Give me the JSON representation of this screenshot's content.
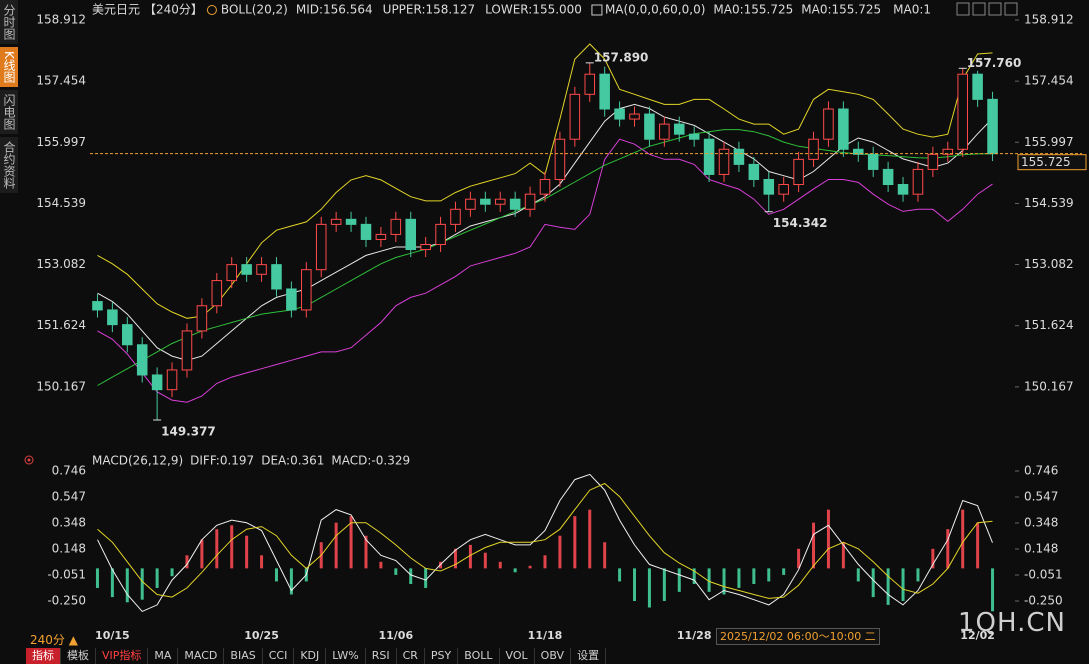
{
  "sidebar": [
    "分时图",
    "K线图",
    "闪电图",
    "合约资料"
  ],
  "chart_data": [
    {
      "type": "candlestick",
      "title": "美元日元",
      "period": "【240分】",
      "indicators": [
        "BOLL(20,2)",
        "MA(0,0,0,60,0,0)"
      ],
      "categories": [
        null,
        "10/15",
        null,
        null,
        null,
        null,
        null,
        null,
        null,
        null,
        null,
        "10/25",
        null,
        null,
        null,
        null,
        null,
        null,
        null,
        null,
        "11/06",
        null,
        null,
        null,
        null,
        null,
        null,
        null,
        null,
        null,
        "11/18",
        null,
        null,
        null,
        null,
        null,
        null,
        null,
        null,
        null,
        "11/28",
        null,
        null,
        null,
        null,
        null,
        null,
        null,
        null,
        null,
        null,
        null,
        null,
        null,
        null,
        null,
        null,
        null,
        null,
        "12/02",
        null
      ],
      "open": [
        152.2,
        152.0,
        151.65,
        151.17,
        150.45,
        150.1,
        150.57,
        151.5,
        152.1,
        152.7,
        153.08,
        152.85,
        153.08,
        152.5,
        152.0,
        152.96,
        154.04,
        154.16,
        154.04,
        153.68,
        153.8,
        154.16,
        153.44,
        153.56,
        154.04,
        154.4,
        154.64,
        154.52,
        154.64,
        154.4,
        154.76,
        155.11,
        156.07,
        157.14,
        157.62,
        156.79,
        156.55,
        156.67,
        156.07,
        156.43,
        156.19,
        156.07,
        155.23,
        155.83,
        155.47,
        155.11,
        154.76,
        154.99,
        155.59,
        156.07,
        156.79,
        155.83,
        155.71,
        155.35,
        154.99,
        154.76,
        155.35,
        155.71,
        155.83,
        157.62,
        157.02
      ],
      "high": [
        152.38,
        152.18,
        151.83,
        151.35,
        150.63,
        150.75,
        151.68,
        152.28,
        152.88,
        153.26,
        153.26,
        153.26,
        153.26,
        152.68,
        153.14,
        154.22,
        154.34,
        154.34,
        154.22,
        153.98,
        154.34,
        154.34,
        153.74,
        154.22,
        154.58,
        154.82,
        154.82,
        154.82,
        154.82,
        154.94,
        155.29,
        156.25,
        157.32,
        157.89,
        157.8,
        156.97,
        156.85,
        156.85,
        156.61,
        156.61,
        156.37,
        156.25,
        156.01,
        156.01,
        155.65,
        155.29,
        155.17,
        155.77,
        156.25,
        156.97,
        156.97,
        156.01,
        155.89,
        155.53,
        155.17,
        155.53,
        155.89,
        156.01,
        157.76,
        157.7,
        157.2
      ],
      "low": [
        151.82,
        151.47,
        150.99,
        150.27,
        149.377,
        149.92,
        150.39,
        151.32,
        151.92,
        152.52,
        152.67,
        152.67,
        152.32,
        151.82,
        151.82,
        152.78,
        153.86,
        153.86,
        153.5,
        153.5,
        153.62,
        153.26,
        153.26,
        153.38,
        153.86,
        154.22,
        154.34,
        154.34,
        154.22,
        154.22,
        154.58,
        154.93,
        155.89,
        156.96,
        156.61,
        156.37,
        156.37,
        155.89,
        155.89,
        156.01,
        155.89,
        155.05,
        155.05,
        155.29,
        154.93,
        154.342,
        154.58,
        154.81,
        155.41,
        155.89,
        155.65,
        155.53,
        155.17,
        154.81,
        154.58,
        154.58,
        155.17,
        155.53,
        155.65,
        156.84,
        155.55
      ],
      "close": [
        152.0,
        151.65,
        151.17,
        150.45,
        150.1,
        150.57,
        151.5,
        152.1,
        152.7,
        153.08,
        152.85,
        153.08,
        152.5,
        152.0,
        152.96,
        154.04,
        154.16,
        154.04,
        153.68,
        153.8,
        154.16,
        153.44,
        153.56,
        154.04,
        154.4,
        154.64,
        154.52,
        154.64,
        154.4,
        154.76,
        155.11,
        156.07,
        157.14,
        157.62,
        156.79,
        156.55,
        156.67,
        156.07,
        156.43,
        156.19,
        156.07,
        155.23,
        155.83,
        155.47,
        155.11,
        154.76,
        154.99,
        155.59,
        156.07,
        156.79,
        155.83,
        155.71,
        155.35,
        154.99,
        154.76,
        155.35,
        155.71,
        155.83,
        157.62,
        157.02,
        155.725
      ],
      "up_color": "#ff4a4a",
      "down_color": "#45c9a0",
      "series": [
        {
          "name": "MID:156.564",
          "color": "#e8e8e8",
          "values": [
            152.4,
            152.2,
            151.9,
            151.5,
            151.1,
            150.9,
            150.8,
            150.9,
            151.2,
            151.5,
            151.8,
            152.1,
            152.3,
            152.4,
            152.5,
            152.7,
            152.9,
            153.1,
            153.3,
            153.4,
            153.5,
            153.5,
            153.5,
            153.6,
            153.8,
            154.0,
            154.1,
            154.2,
            154.3,
            154.5,
            154.7,
            155.0,
            155.5,
            156.0,
            156.5,
            156.8,
            156.9,
            156.8,
            156.6,
            156.5,
            156.4,
            156.2,
            156.0,
            155.8,
            155.6,
            155.3,
            155.2,
            155.1,
            155.3,
            155.6,
            155.9,
            156.1,
            156.0,
            155.8,
            155.6,
            155.5,
            155.4,
            155.5,
            155.8,
            156.2,
            156.564
          ]
        },
        {
          "name": "UPPER:158.127",
          "color": "#e3d428",
          "values": [
            153.3,
            153.1,
            152.85,
            152.5,
            152.15,
            151.95,
            151.8,
            151.85,
            152.15,
            152.6,
            153.1,
            153.6,
            153.9,
            154.0,
            154.1,
            154.4,
            154.8,
            155.1,
            155.2,
            155.1,
            154.9,
            154.7,
            154.6,
            154.6,
            154.8,
            154.95,
            155.05,
            155.15,
            155.25,
            155.5,
            155.23,
            156.55,
            157.98,
            158.34,
            157.98,
            157.26,
            157.14,
            157.02,
            156.9,
            156.9,
            157.02,
            157.02,
            156.79,
            156.55,
            156.43,
            156.43,
            156.19,
            156.31,
            157.02,
            157.26,
            157.2,
            157.14,
            157.02,
            156.67,
            156.31,
            156.19,
            156.12,
            156.19,
            157.5,
            158.1,
            158.127
          ]
        },
        {
          "name": "LOWER:155.000",
          "color": "#d83fd8",
          "values": [
            151.5,
            151.3,
            150.95,
            150.5,
            150.05,
            149.85,
            149.8,
            149.95,
            150.25,
            150.4,
            150.5,
            150.6,
            150.7,
            150.8,
            150.9,
            151.0,
            151.0,
            151.1,
            151.4,
            151.7,
            152.1,
            152.3,
            152.4,
            152.6,
            152.8,
            153.05,
            153.15,
            153.25,
            153.35,
            153.5,
            154.04,
            153.97,
            153.92,
            154.28,
            155.59,
            156.07,
            155.95,
            155.71,
            155.59,
            155.59,
            155.47,
            155.11,
            154.99,
            154.88,
            154.64,
            154.28,
            154.4,
            154.64,
            154.88,
            155.11,
            155.11,
            155.04,
            154.76,
            154.52,
            154.35,
            154.4,
            154.4,
            154.11,
            154.4,
            154.76,
            155.0
          ]
        },
        {
          "name": "MA0:155.725",
          "color": "#2fbf3a",
          "legend_color": "#e8e8e8",
          "values": [
            150.2,
            150.4,
            150.6,
            150.8,
            151.0,
            151.2,
            151.35,
            151.5,
            151.6,
            151.7,
            151.8,
            151.9,
            151.95,
            152.0,
            152.1,
            152.3,
            152.5,
            152.7,
            152.9,
            153.1,
            153.25,
            153.35,
            153.45,
            153.6,
            153.75,
            153.9,
            154.05,
            154.2,
            154.35,
            154.5,
            154.65,
            154.85,
            155.05,
            155.25,
            155.45,
            155.6,
            155.75,
            155.9,
            156.0,
            156.1,
            156.2,
            156.25,
            156.3,
            156.3,
            156.25,
            156.15,
            156.0,
            155.9,
            155.85,
            155.8,
            155.75,
            155.72,
            155.7,
            155.68,
            155.65,
            155.63,
            155.62,
            155.65,
            155.7,
            155.72,
            155.725
          ]
        }
      ],
      "extra_legend": [
        {
          "name": "MA0:155.725",
          "color": "#e3d428"
        },
        {
          "name": "MA0:1",
          "color": "#d83fd8"
        }
      ],
      "extremes": [
        {
          "value": 157.89,
          "label": "157.890"
        },
        {
          "value": 157.76,
          "label": "157.760"
        },
        {
          "value": 149.377,
          "label": "149.377"
        },
        {
          "value": 154.342,
          "label": "154.342"
        }
      ],
      "last_price": 155.725,
      "last_price_color": "#f0a030",
      "ylim": [
        148.9,
        159.15
      ],
      "yticks": [
        150.167,
        151.624,
        153.082,
        154.539,
        155.997,
        157.454,
        158.912
      ]
    },
    {
      "type": "macd",
      "title": "MACD(26,12,9)",
      "series": [
        {
          "name": "DIFF:0.197",
          "color": "#f0f0f0",
          "values": [
            0.22,
            -0.01,
            -0.2,
            -0.33,
            -0.28,
            -0.09,
            0.03,
            0.22,
            0.33,
            0.37,
            0.35,
            0.29,
            0.06,
            -0.17,
            -0.05,
            0.37,
            0.45,
            0.41,
            0.22,
            0.1,
            0.06,
            -0.05,
            -0.09,
            0.03,
            0.14,
            0.22,
            0.26,
            0.22,
            0.18,
            0.18,
            0.29,
            0.52,
            0.68,
            0.72,
            0.6,
            0.37,
            0.18,
            0.03,
            -0.01,
            -0.05,
            -0.09,
            -0.24,
            -0.17,
            -0.2,
            -0.24,
            -0.28,
            -0.2,
            -0.01,
            0.26,
            0.33,
            0.18,
            0.03,
            -0.09,
            -0.2,
            -0.28,
            -0.17,
            0.03,
            0.22,
            0.52,
            0.48,
            0.197
          ]
        },
        {
          "name": "DEA:0.361",
          "color": "#e3d428",
          "values": [
            0.3,
            0.2,
            0.05,
            -0.1,
            -0.2,
            -0.22,
            -0.15,
            -0.03,
            0.1,
            0.22,
            0.3,
            0.32,
            0.25,
            0.1,
            0.0,
            0.1,
            0.25,
            0.35,
            0.35,
            0.27,
            0.18,
            0.08,
            0.0,
            -0.02,
            0.03,
            0.1,
            0.16,
            0.2,
            0.2,
            0.2,
            0.22,
            0.3,
            0.45,
            0.6,
            0.65,
            0.55,
            0.4,
            0.25,
            0.12,
            0.04,
            -0.02,
            -0.1,
            -0.14,
            -0.17,
            -0.2,
            -0.23,
            -0.22,
            -0.13,
            0.02,
            0.15,
            0.2,
            0.15,
            0.05,
            -0.06,
            -0.16,
            -0.19,
            -0.12,
            0.0,
            0.2,
            0.35,
            0.361
          ]
        },
        {
          "name": "MACD:-0.329",
          "color": "#d83fd8",
          "up_color": "#e0434a",
          "down_color": "#3fbf8f",
          "bars": true,
          "values": [
            -0.15,
            -0.22,
            -0.26,
            -0.24,
            -0.15,
            -0.06,
            0.1,
            0.22,
            0.3,
            0.33,
            0.25,
            0.1,
            -0.1,
            -0.2,
            -0.1,
            0.2,
            0.35,
            0.4,
            0.25,
            0.05,
            -0.05,
            -0.12,
            -0.15,
            0.05,
            0.15,
            0.18,
            0.12,
            0.05,
            -0.03,
            0.02,
            0.1,
            0.25,
            0.4,
            0.45,
            0.2,
            -0.1,
            -0.25,
            -0.3,
            -0.25,
            -0.18,
            -0.12,
            -0.18,
            -0.2,
            -0.15,
            -0.12,
            -0.1,
            -0.05,
            0.15,
            0.35,
            0.45,
            0.2,
            -0.1,
            -0.22,
            -0.28,
            -0.25,
            -0.1,
            0.15,
            0.3,
            0.45,
            0.35,
            -0.329
          ]
        }
      ],
      "ylim": [
        -0.434,
        0.815
      ],
      "yticks": [
        0.746,
        0.547,
        0.348,
        0.148,
        -0.051,
        {
          "value": -0.25,
          "label": "-0.250"
        }
      ]
    }
  ],
  "period_label": "240分 ▲",
  "status": "2025/12/02 06:00～10:00 二",
  "toolbar": [
    "指标",
    "模板",
    "VIP指标",
    "MA",
    "MACD",
    "BIAS",
    "CCI",
    "KDJ",
    "LW%",
    "RSI",
    "CR",
    "PSY",
    "BOLL",
    "VOL",
    "OBV",
    "设置"
  ],
  "watermark": "1QH.CN"
}
